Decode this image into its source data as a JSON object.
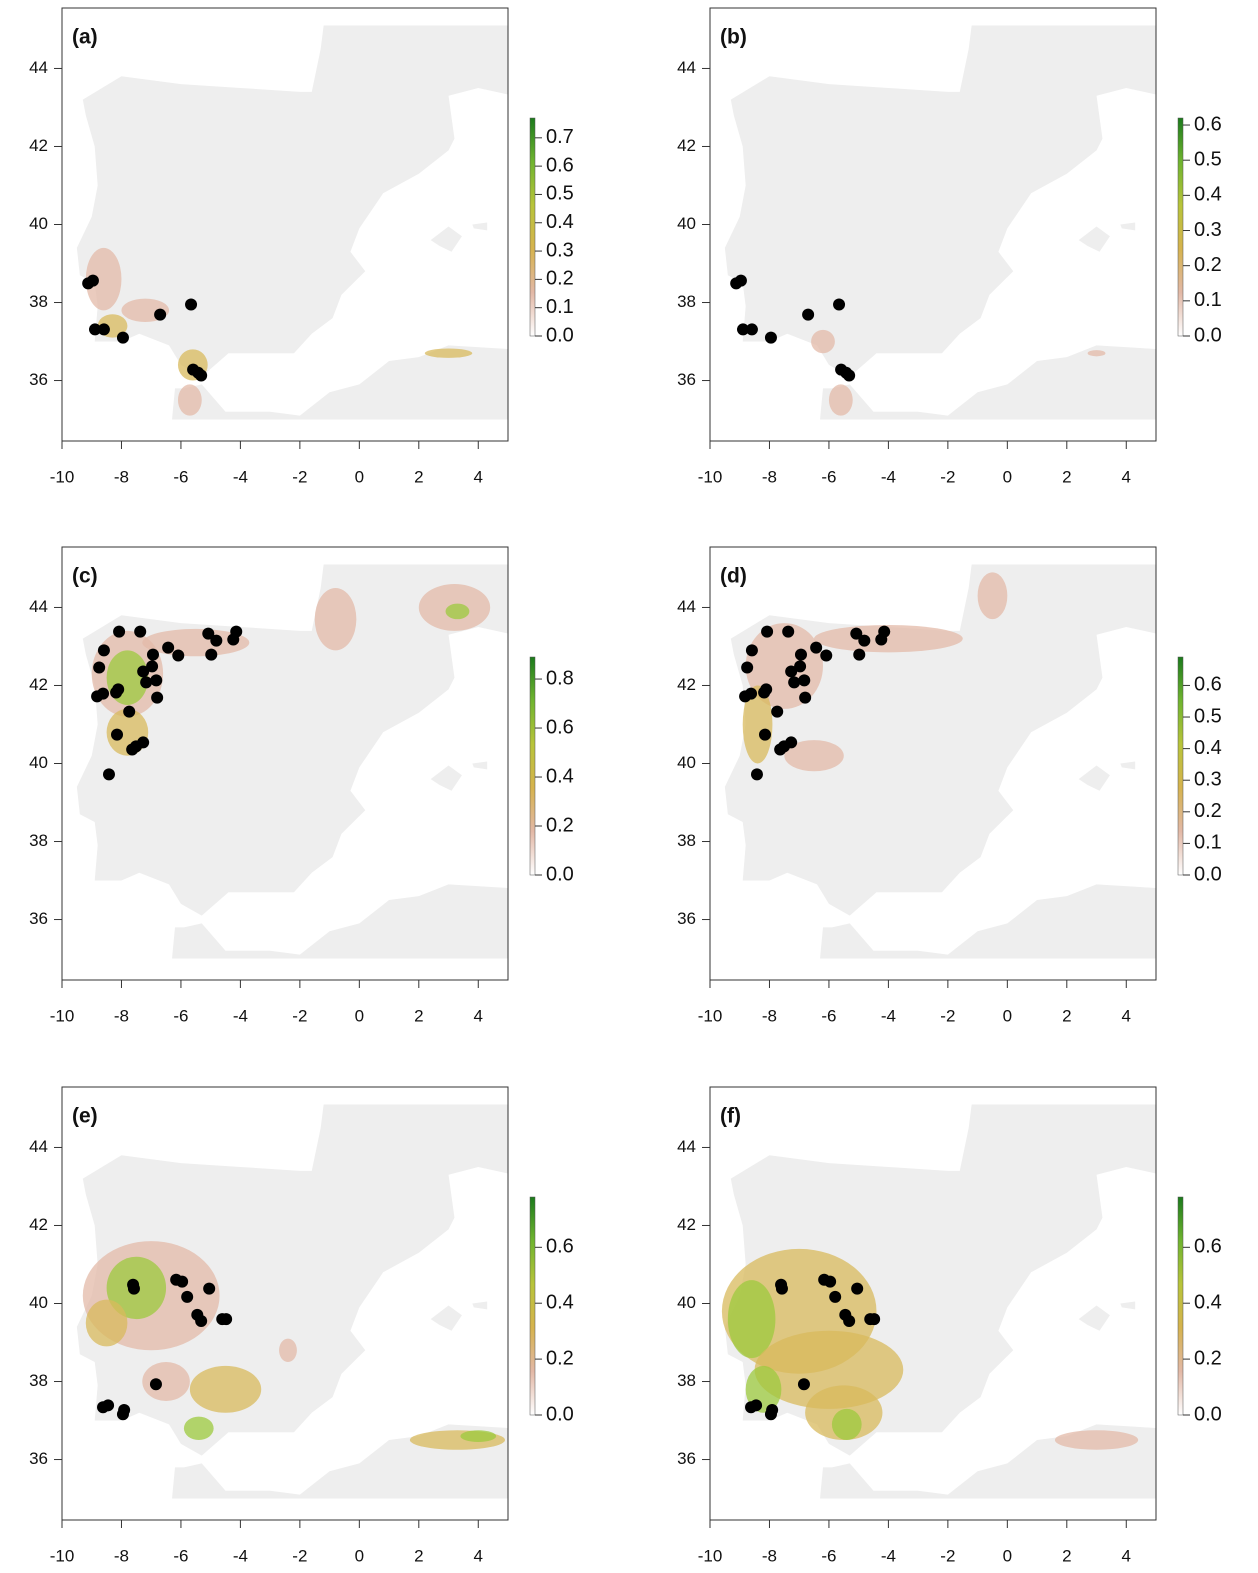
{
  "chart_data": [
    {
      "type": "map",
      "label": "(a)",
      "x": [
        -9.12,
        -8.96,
        -8.89,
        -8.59,
        -7.95,
        -6.7,
        -5.66,
        -5.59,
        -5.42,
        -5.32
      ],
      "y": [
        38.49,
        38.56,
        37.31,
        37.31,
        37.1,
        37.69,
        37.95,
        36.28,
        36.2,
        36.13
      ],
      "point_color": "#000000",
      "xlim": [
        -10,
        5
      ],
      "ylim": [
        34.45,
        45.55
      ],
      "xticks": [
        -10,
        -8,
        -6,
        -4,
        -2,
        0,
        2,
        4
      ],
      "yticks": [
        36,
        38,
        40,
        42,
        44
      ],
      "clim": [
        0,
        0.77
      ],
      "cticks": [
        {
          "value": 0,
          "label": "0.0"
        },
        0.1,
        0.2,
        0.3,
        0.4,
        0.5,
        0.6,
        0.7
      ],
      "colors": [
        "#ffffff",
        "#e2b8a6",
        "#d6b34e",
        "#b8c43a",
        "#6fb42f",
        "#1c7a1c"
      ]
    },
    {
      "type": "map",
      "label": "(b)",
      "x": [
        -9.12,
        -8.96,
        -8.89,
        -8.59,
        -7.95,
        -6.7,
        -5.66,
        -5.59,
        -5.42,
        -5.32
      ],
      "y": [
        38.49,
        38.56,
        37.31,
        37.31,
        37.1,
        37.69,
        37.95,
        36.28,
        36.2,
        36.13
      ],
      "point_color": "#000000",
      "xlim": [
        -10,
        5
      ],
      "ylim": [
        34.45,
        45.55
      ],
      "xticks": [
        -10,
        -8,
        -6,
        -4,
        -2,
        0,
        2,
        4
      ],
      "yticks": [
        36,
        38,
        40,
        42,
        44
      ],
      "clim": [
        0,
        0.62
      ],
      "cticks": [
        {
          "value": 0,
          "label": "0.0"
        },
        0.1,
        0.2,
        0.3,
        0.4,
        0.5,
        0.6
      ],
      "colors": [
        "#ffffff",
        "#e2b8a6",
        "#d6b34e",
        "#b8c43a",
        "#6fb42f",
        "#1c7a1c"
      ]
    },
    {
      "type": "map",
      "label": "(c)",
      "x": [
        -8.08,
        -7.37,
        -8.75,
        -8.59,
        -8.82,
        -8.62,
        -8.18,
        -8.11,
        -7.27,
        -6.97,
        -6.94,
        -6.43,
        -6.09,
        -6.83,
        -6.8,
        -7.74,
        -8.15,
        -7.27,
        -7.51,
        -7.64,
        -8.42,
        -5.08,
        -4.81,
        -4.98,
        -4.24,
        -4.14,
        -7.17
      ],
      "y": [
        43.38,
        43.38,
        42.46,
        42.9,
        41.72,
        41.79,
        41.82,
        41.9,
        42.36,
        42.49,
        42.79,
        42.97,
        42.77,
        42.13,
        41.69,
        41.33,
        40.74,
        40.54,
        40.44,
        40.36,
        39.72,
        43.33,
        43.15,
        42.79,
        43.18,
        43.38,
        42.08
      ],
      "point_color": "#000000",
      "xlim": [
        -10,
        5
      ],
      "ylim": [
        34.45,
        45.55
      ],
      "xticks": [
        -10,
        -8,
        -6,
        -4,
        -2,
        0,
        2,
        4
      ],
      "yticks": [
        36,
        38,
        40,
        42,
        44
      ],
      "clim": [
        0,
        0.89
      ],
      "cticks": [
        {
          "value": 0,
          "label": "0.0"
        },
        0.2,
        0.4,
        0.6,
        0.8
      ],
      "colors": [
        "#ffffff",
        "#e2b8a6",
        "#d6b34e",
        "#b8c43a",
        "#6fb42f",
        "#1c7a1c"
      ]
    },
    {
      "type": "map",
      "label": "(d)",
      "x": [
        -8.08,
        -7.37,
        -8.75,
        -8.59,
        -8.82,
        -8.62,
        -8.18,
        -8.11,
        -7.27,
        -6.97,
        -6.94,
        -6.43,
        -6.09,
        -6.83,
        -6.8,
        -7.74,
        -8.15,
        -7.27,
        -7.51,
        -7.64,
        -8.42,
        -5.08,
        -4.81,
        -4.98,
        -4.24,
        -4.14,
        -7.17
      ],
      "y": [
        43.38,
        43.38,
        42.46,
        42.9,
        41.72,
        41.79,
        41.82,
        41.9,
        42.36,
        42.49,
        42.79,
        42.97,
        42.77,
        42.13,
        41.69,
        41.33,
        40.74,
        40.54,
        40.44,
        40.36,
        39.72,
        43.33,
        43.15,
        42.79,
        43.18,
        43.38,
        42.08
      ],
      "point_color": "#000000",
      "xlim": [
        -10,
        5
      ],
      "ylim": [
        34.45,
        45.55
      ],
      "xticks": [
        -10,
        -8,
        -6,
        -4,
        -2,
        0,
        2,
        4
      ],
      "yticks": [
        36,
        38,
        40,
        42,
        44
      ],
      "clim": [
        0,
        0.69
      ],
      "cticks": [
        {
          "value": 0,
          "label": "0.0"
        },
        0.1,
        0.2,
        0.3,
        0.4,
        0.5,
        0.6
      ],
      "colors": [
        "#ffffff",
        "#e2b8a6",
        "#d6b34e",
        "#b8c43a",
        "#6fb42f",
        "#1c7a1c"
      ]
    },
    {
      "type": "map",
      "label": "(e)",
      "x": [
        -7.61,
        -7.58,
        -6.16,
        -5.96,
        -5.79,
        -5.05,
        -5.45,
        -5.32,
        -4.61,
        -4.48,
        -6.84,
        -8.62,
        -8.45,
        -7.91,
        -7.95
      ],
      "y": [
        40.48,
        40.38,
        40.61,
        40.56,
        40.17,
        40.38,
        39.71,
        39.55,
        39.6,
        39.6,
        37.93,
        37.34,
        37.39,
        37.27,
        37.16
      ],
      "point_color": "#000000",
      "xlim": [
        -10,
        5
      ],
      "ylim": [
        34.45,
        45.55
      ],
      "xticks": [
        -10,
        -8,
        -6,
        -4,
        -2,
        0,
        2,
        4
      ],
      "yticks": [
        36,
        38,
        40,
        42,
        44
      ],
      "clim": [
        0,
        0.78
      ],
      "cticks": [
        {
          "value": 0,
          "label": "0.0"
        },
        0.2,
        0.4,
        0.6
      ],
      "colors": [
        "#ffffff",
        "#e2b8a6",
        "#d6b34e",
        "#b8c43a",
        "#6fb42f",
        "#1c7a1c"
      ]
    },
    {
      "type": "map",
      "label": "(f)",
      "x": [
        -7.61,
        -7.58,
        -6.16,
        -5.96,
        -5.79,
        -5.05,
        -5.45,
        -5.32,
        -4.61,
        -4.48,
        -6.84,
        -8.62,
        -8.45,
        -7.91,
        -7.95
      ],
      "y": [
        40.48,
        40.38,
        40.61,
        40.56,
        40.17,
        40.38,
        39.71,
        39.55,
        39.6,
        39.6,
        37.93,
        37.34,
        37.39,
        37.27,
        37.16
      ],
      "point_color": "#000000",
      "xlim": [
        -10,
        5
      ],
      "ylim": [
        34.45,
        45.55
      ],
      "xticks": [
        -10,
        -8,
        -6,
        -4,
        -2,
        0,
        2,
        4
      ],
      "yticks": [
        36,
        38,
        40,
        42,
        44
      ],
      "clim": [
        0,
        0.78
      ],
      "cticks": [
        {
          "value": 0,
          "label": "0.0"
        },
        0.2,
        0.4,
        0.6
      ],
      "colors": [
        "#ffffff",
        "#e2b8a6",
        "#d6b34e",
        "#b8c43a",
        "#6fb42f",
        "#1c7a1c"
      ]
    }
  ]
}
